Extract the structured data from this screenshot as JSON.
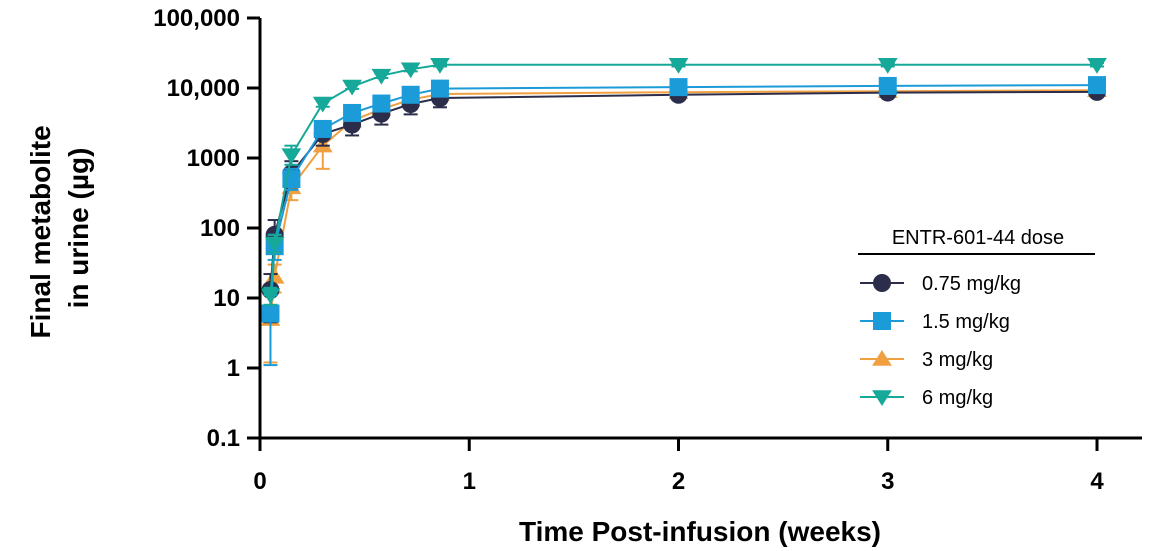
{
  "chart_data": {
    "type": "line",
    "xlabel": "Time Post-infusion (weeks)",
    "ylabel": [
      "Final metabolite",
      "in urine (µg)"
    ],
    "xlim": [
      0,
      4
    ],
    "ylim": [
      0.1,
      100000
    ],
    "yscale": "log",
    "xticks": [
      0,
      1,
      2,
      3,
      4
    ],
    "xtick_labels": [
      "0",
      "1",
      "2",
      "3",
      "4"
    ],
    "yticks": [
      0.1,
      1,
      10,
      100,
      1000,
      10000,
      100000
    ],
    "ytick_labels": [
      "0.1",
      "1",
      "10",
      "100",
      "1000",
      "10,000",
      "100,000"
    ],
    "legend_title": "ENTR-601-44 dose",
    "legend_position": "right",
    "series": [
      {
        "name": "0.75 mg/kg",
        "color": "#2b2d4a",
        "marker": "circle",
        "points": [
          {
            "x": 0.05,
            "y": 13,
            "lo": 4.5,
            "hi": 22
          },
          {
            "x": 0.07,
            "y": 80,
            "lo": 45,
            "hi": 130
          },
          {
            "x": 0.15,
            "y": 600,
            "lo": 380,
            "hi": 900
          },
          {
            "x": 0.3,
            "y": 2200,
            "lo": 1500,
            "hi": 3000
          },
          {
            "x": 0.44,
            "y": 3000,
            "lo": 2100,
            "hi": 3900
          },
          {
            "x": 0.58,
            "y": 4300,
            "lo": 3000,
            "hi": 5600
          },
          {
            "x": 0.72,
            "y": 5900,
            "lo": 4200,
            "hi": 7600
          },
          {
            "x": 0.86,
            "y": 7200,
            "lo": 5300,
            "hi": 9100
          },
          {
            "x": 2,
            "y": 8000,
            "lo": 7500,
            "hi": 8500
          },
          {
            "x": 3,
            "y": 8600,
            "lo": 8100,
            "hi": 9100
          },
          {
            "x": 4,
            "y": 8800,
            "lo": 8300,
            "hi": 9300
          }
        ]
      },
      {
        "name": "1.5 mg/kg",
        "color": "#1b9bd8",
        "marker": "square",
        "points": [
          {
            "x": 0.05,
            "y": 6,
            "lo": 1.1,
            "hi": 11
          },
          {
            "x": 0.07,
            "y": 55,
            "lo": 35,
            "hi": 80
          },
          {
            "x": 0.15,
            "y": 500,
            "lo": 350,
            "hi": 700
          },
          {
            "x": 0.3,
            "y": 2600,
            "lo": 2300,
            "hi": 3000
          },
          {
            "x": 0.44,
            "y": 4400,
            "lo": 4000,
            "hi": 4900
          },
          {
            "x": 0.58,
            "y": 6000,
            "lo": 5500,
            "hi": 6600
          },
          {
            "x": 0.72,
            "y": 8000,
            "lo": 7300,
            "hi": 8800
          },
          {
            "x": 0.86,
            "y": 9800,
            "lo": 9000,
            "hi": 10700
          },
          {
            "x": 2,
            "y": 10300,
            "lo": 9600,
            "hi": 11000
          },
          {
            "x": 3,
            "y": 10700,
            "lo": 10000,
            "hi": 11400
          },
          {
            "x": 4,
            "y": 11000,
            "lo": 10300,
            "hi": 11700
          }
        ]
      },
      {
        "name": "3 mg/kg",
        "color": "#f0a040",
        "marker": "triangle-up",
        "points": [
          {
            "x": 0.05,
            "y": 5,
            "lo": 1.2,
            "hi": 15
          },
          {
            "x": 0.07,
            "y": 20,
            "lo": 12,
            "hi": 30
          },
          {
            "x": 0.15,
            "y": 380,
            "lo": 250,
            "hi": 520
          },
          {
            "x": 0.3,
            "y": 1500,
            "lo": 700,
            "hi": 2200
          },
          {
            "x": 0.44,
            "y": 3400,
            "lo": 2900,
            "hi": 3900
          },
          {
            "x": 0.58,
            "y": 5000,
            "lo": 4400,
            "hi": 5600
          },
          {
            "x": 0.72,
            "y": 6800,
            "lo": 6000,
            "hi": 7600
          },
          {
            "x": 0.86,
            "y": 8200,
            "lo": 7300,
            "hi": 9100
          },
          {
            "x": 2,
            "y": 8700,
            "lo": 7800,
            "hi": 9600
          },
          {
            "x": 3,
            "y": 9000,
            "lo": 7900,
            "hi": 10100
          },
          {
            "x": 4,
            "y": 9300,
            "lo": 8000,
            "hi": 10600
          }
        ]
      },
      {
        "name": "6 mg/kg",
        "color": "#16a898",
        "marker": "triangle-down",
        "points": [
          {
            "x": 0.05,
            "y": 11,
            "lo": 8,
            "hi": 14
          },
          {
            "x": 0.07,
            "y": 60,
            "lo": 45,
            "hi": 80
          },
          {
            "x": 0.15,
            "y": 1100,
            "lo": 800,
            "hi": 1500
          },
          {
            "x": 0.3,
            "y": 6000,
            "lo": 5400,
            "hi": 6600
          },
          {
            "x": 0.44,
            "y": 10500,
            "lo": 9700,
            "hi": 11300
          },
          {
            "x": 0.58,
            "y": 15000,
            "lo": 13900,
            "hi": 16100
          },
          {
            "x": 0.72,
            "y": 18500,
            "lo": 17300,
            "hi": 19700
          },
          {
            "x": 0.86,
            "y": 21500,
            "lo": 20300,
            "hi": 22700
          },
          {
            "x": 2,
            "y": 21500,
            "lo": 20300,
            "hi": 22700
          },
          {
            "x": 3,
            "y": 21500,
            "lo": 20300,
            "hi": 22700
          },
          {
            "x": 4,
            "y": 21500,
            "lo": 20300,
            "hi": 22700
          }
        ]
      }
    ]
  }
}
